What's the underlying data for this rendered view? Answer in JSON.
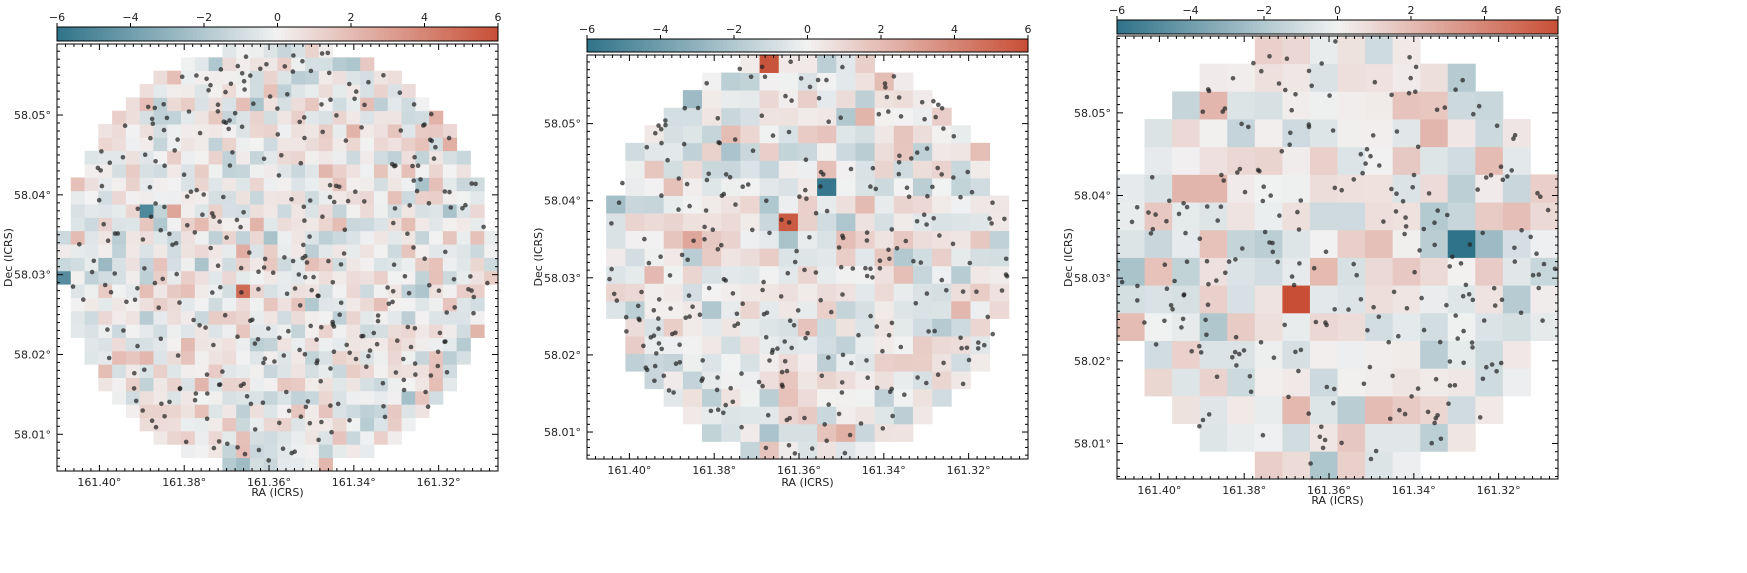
{
  "chart_data": [
    {
      "type": "heatmap",
      "panel": "left",
      "xlabel": "RA (ICRS)",
      "ylabel": "Dec (ICRS)",
      "x_tick_labels": [
        "161.40°",
        "161.38°",
        "161.36°",
        "161.34°",
        "161.32°"
      ],
      "y_tick_labels": [
        "58.05°",
        "58.04°",
        "58.03°",
        "58.02°",
        "58.01°"
      ],
      "xlim": [
        161.41,
        161.306
      ],
      "ylim": [
        58.0054,
        58.0589
      ],
      "grid": false,
      "bins": 32,
      "colorbar": {
        "position": "top",
        "range": [
          -6,
          6
        ],
        "tick_labels": [
          "−6",
          "−4",
          "−2",
          "0",
          "2",
          "4",
          "6"
        ]
      },
      "highlight_bins": [
        {
          "col": 11,
          "row": 31,
          "value": 6.0
        },
        {
          "col": 3,
          "row": 27,
          "value": 5.2
        },
        {
          "col": 6,
          "row": 19,
          "value": -5.0
        },
        {
          "col": 13,
          "row": 13,
          "value": 5.0
        },
        {
          "col": 0,
          "row": 14,
          "value": -4.8
        }
      ],
      "n_points": 350
    },
    {
      "type": "heatmap",
      "panel": "middle",
      "xlabel": "RA (ICRS)",
      "ylabel": "Dec (ICRS)",
      "x_tick_labels": [
        "161.40°",
        "161.38°",
        "161.36°",
        "161.34°",
        "161.32°"
      ],
      "y_tick_labels": [
        "58.05°",
        "58.04°",
        "58.03°",
        "58.02°",
        "58.01°"
      ],
      "xlim": [
        161.41,
        161.306
      ],
      "ylim": [
        58.0065,
        58.0589
      ],
      "grid": false,
      "bins": 23,
      "colorbar": {
        "position": "top",
        "range": [
          -6,
          6
        ],
        "tick_labels": [
          "−6",
          "−4",
          "−2",
          "0",
          "2",
          "4",
          "6"
        ]
      },
      "highlight_bins": [
        {
          "col": 9,
          "row": 22,
          "value": 5.8
        },
        {
          "col": 2,
          "row": 19,
          "value": 5.6
        },
        {
          "col": 12,
          "row": 15,
          "value": -5.8
        },
        {
          "col": 10,
          "row": 13,
          "value": 5.6
        },
        {
          "col": 22,
          "row": 9,
          "value": 5.6
        },
        {
          "col": 13,
          "row": 19,
          "value": -2.0
        },
        {
          "col": 7,
          "row": 17,
          "value": -2.2
        },
        {
          "col": 1,
          "row": 14,
          "value": -2.4
        }
      ],
      "n_points": 300
    },
    {
      "type": "heatmap",
      "panel": "right",
      "xlabel": "RA (ICRS)",
      "ylabel": "Dec (ICRS)",
      "x_tick_labels": [
        "161.40°",
        "161.38°",
        "161.36°",
        "161.34°",
        "161.32°"
      ],
      "y_tick_labels": [
        "58.05°",
        "58.04°",
        "58.03°",
        "58.02°",
        "58.01°"
      ],
      "xlim": [
        161.41,
        161.306
      ],
      "ylim": [
        58.0057,
        58.0593
      ],
      "grid": false,
      "bins": 16,
      "colorbar": {
        "position": "top",
        "range": [
          -6,
          6
        ],
        "tick_labels": [
          "−6",
          "−4",
          "−2",
          "0",
          "2",
          "4",
          "6"
        ]
      },
      "highlight_bins": [
        {
          "col": 6,
          "row": 6,
          "value": 6.0
        },
        {
          "col": 12,
          "row": 8,
          "value": -6.0
        },
        {
          "col": 11,
          "row": 12,
          "value": 2.2
        },
        {
          "col": 0,
          "row": 5,
          "value": 2.0
        },
        {
          "col": 3,
          "row": 10,
          "value": 2.2
        },
        {
          "col": 13,
          "row": 8,
          "value": -2.6
        }
      ],
      "n_points": 260
    }
  ]
}
